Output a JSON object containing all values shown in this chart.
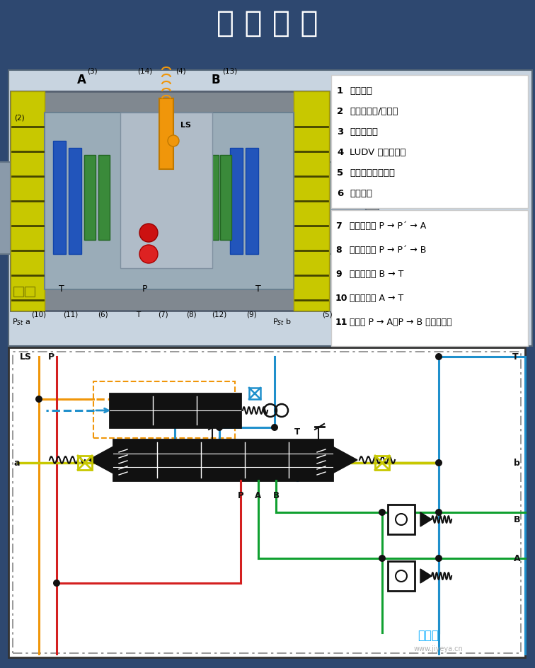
{
  "title": "详 情 介 绍",
  "title_color": "#ffffff",
  "title_fontsize": 30,
  "background_color": "#2e4870",
  "legend_items_top": [
    [
      "1",
      "行程限制"
    ],
    [
      "2",
      "二次溢流阀/补油阀"
    ],
    [
      "3",
      "负载保持阀"
    ],
    [
      "4",
      "LUDV 压力补偿器"
    ],
    [
      "5",
      "先导压力缓冲梭阀"
    ],
    [
      "6",
      "控制阀芯"
    ]
  ],
  "legend_items_bottom": [
    [
      "7",
      "供油节流孔 P → P´ → A"
    ],
    [
      "8",
      "供油节流孔 P → P´ → B"
    ],
    [
      "9",
      "出口节流孔 B → T"
    ],
    [
      "10",
      "出口节流孔 A → T"
    ],
    [
      "11",
      "换向槽 P → A（P → B 与之对应）"
    ]
  ],
  "colors": {
    "red": "#d42020",
    "blue": "#2090cc",
    "orange": "#f0960a",
    "yellow_green": "#c8c800",
    "yellow": "#c8c800",
    "green": "#10a030",
    "dark_bg": "#2e4870",
    "white": "#ffffff",
    "black": "#111111",
    "diagram_bg": "#ffffff",
    "dash_border": "#888888",
    "top_panel_bg": "#c8d4e0",
    "valve_gray": "#7a8a96",
    "inner_gray": "#9ab0bc",
    "green_part": "#3a8a3a",
    "blue_part": "#2266bb",
    "legend_bg": "#ffffff"
  },
  "watermark": "www.jiyeya.cn",
  "watermark2": "爱液压"
}
